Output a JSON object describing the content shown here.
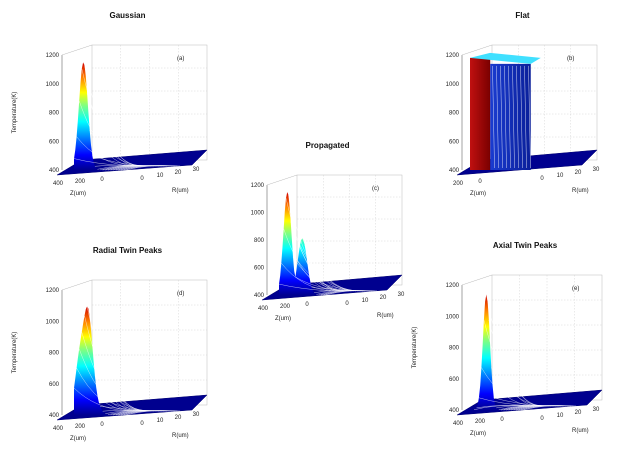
{
  "figure": {
    "ylabel": "Temperature(K)"
  },
  "chart_data": [
    {
      "type": "surface",
      "title": "Gaussian",
      "tag": "(a)",
      "profile": "gaussian",
      "ylabel": "Temperature(K)",
      "zlim": [
        400,
        1200
      ],
      "z_ticks": [
        "1200",
        "1000",
        "800",
        "600",
        "400"
      ],
      "z_label": "Z(um)",
      "z_axis_ticks": [
        "400",
        "200",
        "0"
      ],
      "r_label": "R(um)",
      "r_ticks": [
        "0",
        "10",
        "20",
        "30"
      ],
      "peak_temperature": 1150
    },
    {
      "type": "surface",
      "title": "Flat",
      "tag": "(b)",
      "profile": "flat",
      "zlim": [
        400,
        1200
      ],
      "z_ticks": [
        "1200",
        "1000",
        "800",
        "600",
        "400"
      ],
      "z_label": "Z(um)",
      "z_axis_ticks": [
        "200",
        "0"
      ],
      "r_label": "R(um)",
      "r_ticks": [
        "0",
        "10",
        "20",
        "30"
      ],
      "peak_temperature": 1180
    },
    {
      "type": "surface",
      "title": "Propagated",
      "tag": "(c)",
      "profile": "propagated",
      "zlim": [
        400,
        1200
      ],
      "z_ticks": [
        "1200",
        "1000",
        "800",
        "600",
        "400"
      ],
      "z_label": "Z(um)",
      "z_axis_ticks": [
        "400",
        "200",
        "0"
      ],
      "r_label": "R(um)",
      "r_ticks": [
        "0",
        "10",
        "20",
        "30"
      ],
      "peak_temperature": 1150
    },
    {
      "type": "surface",
      "title": "Radial Twin Peaks",
      "tag": "(d)",
      "profile": "radial-twin",
      "ylabel": "Temperature(K)",
      "zlim": [
        400,
        1200
      ],
      "z_ticks": [
        "1200",
        "1000",
        "800",
        "600",
        "400"
      ],
      "z_label": "Z(um)",
      "z_axis_ticks": [
        "400",
        "200",
        "0"
      ],
      "r_label": "R(um)",
      "r_ticks": [
        "0",
        "10",
        "20",
        "30"
      ],
      "peak_temperature": 1170
    },
    {
      "type": "surface",
      "title": "Axial Twin Peaks",
      "tag": "(e)",
      "profile": "axial-twin",
      "ylabel": "Temperature(K)",
      "zlim": [
        400,
        1200
      ],
      "z_ticks": [
        "1200",
        "1000",
        "800",
        "600",
        "400"
      ],
      "z_label": "Z(um)",
      "z_axis_ticks": [
        "400",
        "200",
        "0"
      ],
      "r_label": "R(um)",
      "r_ticks": [
        "0",
        "10",
        "20",
        "30"
      ],
      "peak_temperature": 1140
    }
  ]
}
